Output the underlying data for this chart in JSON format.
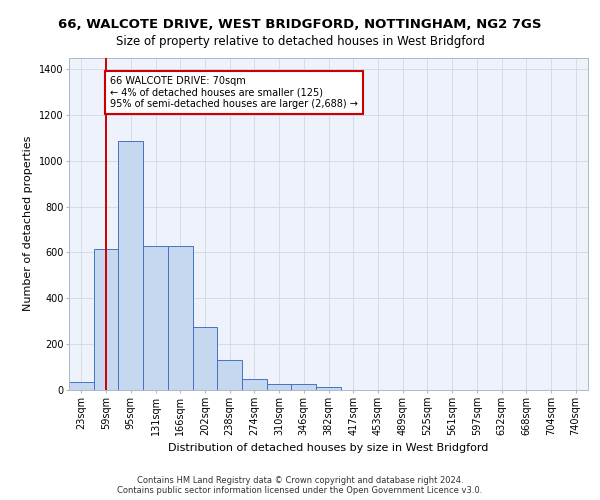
{
  "title1": "66, WALCOTE DRIVE, WEST BRIDGFORD, NOTTINGHAM, NG2 7GS",
  "title2": "Size of property relative to detached houses in West Bridgford",
  "xlabel": "Distribution of detached houses by size in West Bridgford",
  "ylabel": "Number of detached properties",
  "footer1": "Contains HM Land Registry data © Crown copyright and database right 2024.",
  "footer2": "Contains public sector information licensed under the Open Government Licence v3.0.",
  "annotation_title": "66 WALCOTE DRIVE: 70sqm",
  "annotation_line1": "← 4% of detached houses are smaller (125)",
  "annotation_line2": "95% of semi-detached houses are larger (2,688) →",
  "bar_categories": [
    "23sqm",
    "59sqm",
    "95sqm",
    "131sqm",
    "166sqm",
    "202sqm",
    "238sqm",
    "274sqm",
    "310sqm",
    "346sqm",
    "382sqm",
    "417sqm",
    "453sqm",
    "489sqm",
    "525sqm",
    "561sqm",
    "597sqm",
    "632sqm",
    "668sqm",
    "704sqm",
    "740sqm"
  ],
  "bar_values": [
    35,
    615,
    1085,
    630,
    630,
    275,
    130,
    50,
    25,
    25,
    15,
    0,
    0,
    0,
    0,
    0,
    0,
    0,
    0,
    0,
    0
  ],
  "bar_color": "#c5d8f0",
  "bar_edge_color": "#4472c4",
  "vline_x": 1.0,
  "vline_color": "#cc0000",
  "annotation_box_color": "#cc0000",
  "ylim": [
    0,
    1450
  ],
  "yticks": [
    0,
    200,
    400,
    600,
    800,
    1000,
    1200,
    1400
  ],
  "grid_color": "#d0d8e8",
  "bg_color": "#eef2fa",
  "title1_fontsize": 9.5,
  "title2_fontsize": 8.5,
  "ylabel_fontsize": 8,
  "xlabel_fontsize": 8,
  "tick_fontsize": 7,
  "annotation_fontsize": 7,
  "footer_fontsize": 6
}
